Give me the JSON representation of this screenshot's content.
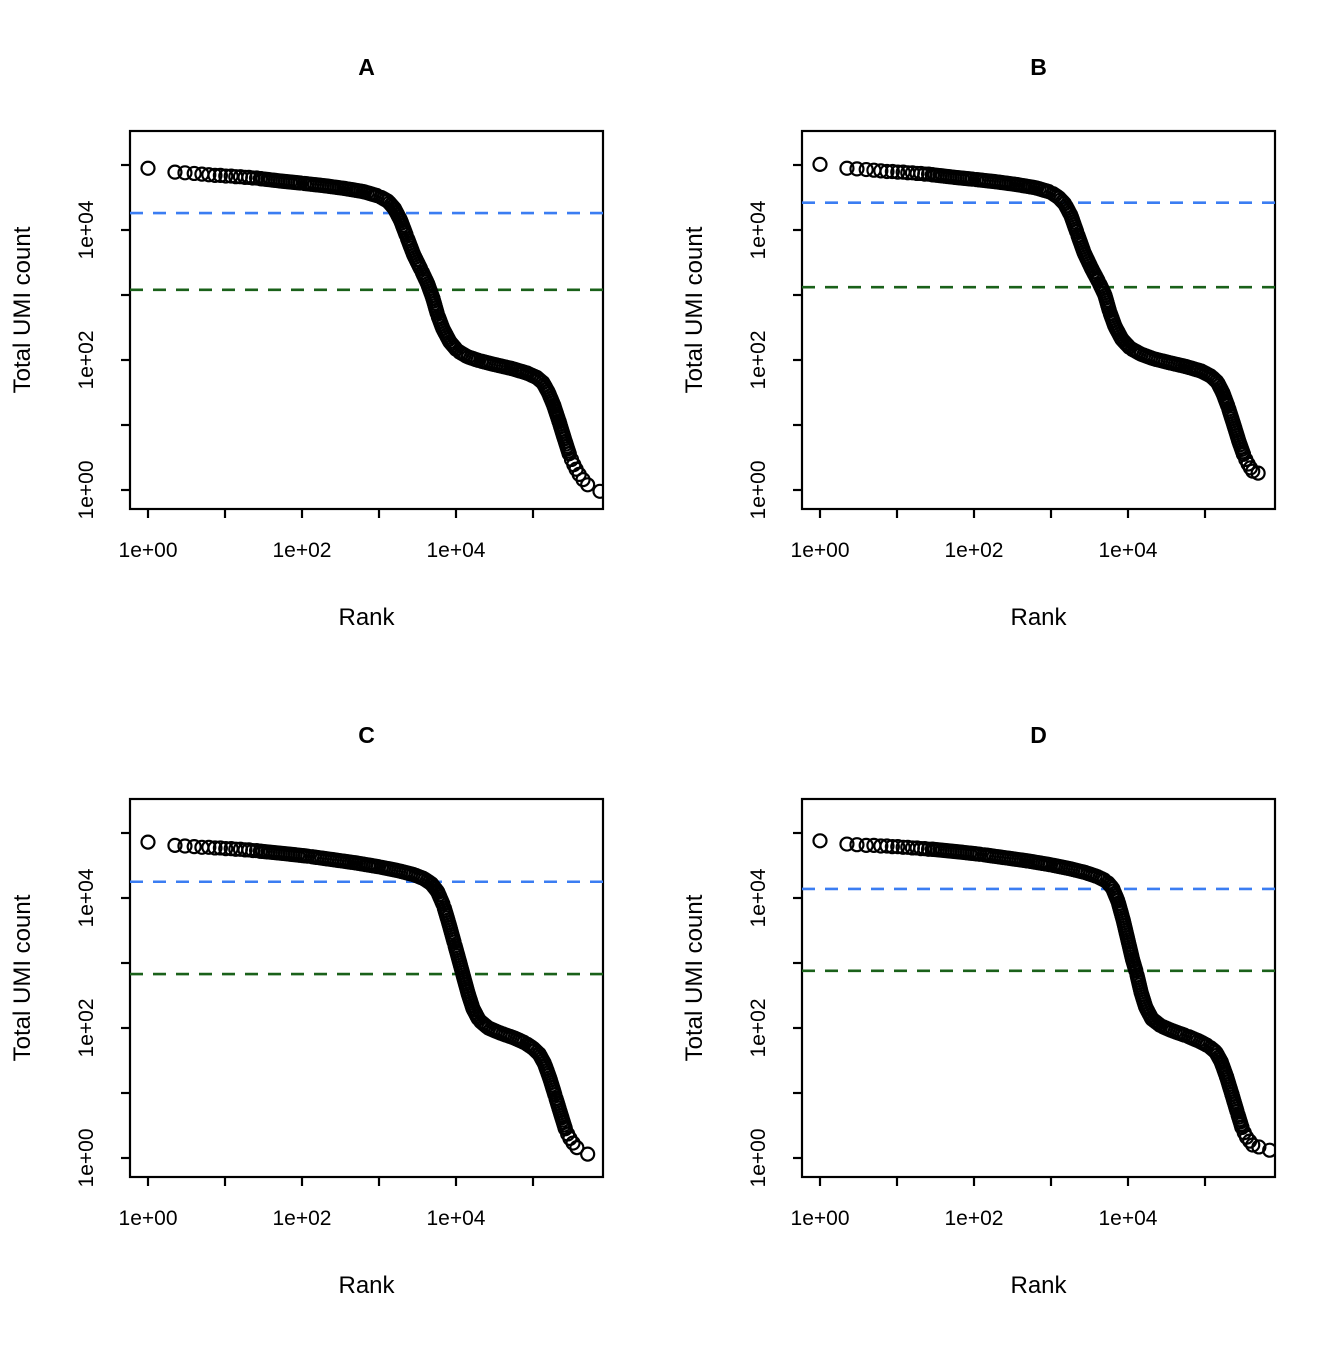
{
  "figure": {
    "description": "Four barcode-rank (knee) plots of droplet scRNA-seq data, panels A-D, log-log axes, with dashed knee and inflection threshold lines",
    "background": "#ffffff",
    "colors": {
      "point_stroke": "#000000",
      "knee_line": "#3b7df2",
      "inflection_line": "#1a611a",
      "axis": "#000000",
      "text": "#000000"
    }
  },
  "chart_data": [
    {
      "panel": "A",
      "type": "scatter",
      "title": "A",
      "xlabel": "Rank",
      "ylabel": "Total UMI count",
      "xscale": "log10",
      "yscale": "log10",
      "grid": false,
      "legend": "none",
      "x_ticks_log10": [
        0,
        1,
        2,
        3,
        4,
        5
      ],
      "x_tick_labels": [
        "1e+00",
        "",
        "1e+02",
        "",
        "1e+04",
        ""
      ],
      "y_ticks_log10": [
        0,
        1,
        2,
        3,
        4,
        5
      ],
      "y_tick_labels": [
        "1e+00",
        "",
        "1e+02",
        "",
        "1e+04",
        ""
      ],
      "xlim_log10": [
        -0.23,
        5.91
      ],
      "ylim_log10": [
        -0.29,
        5.52
      ],
      "knee_log10": 4.26,
      "knee_value_approx": 18000,
      "inflection_log10": 3.08,
      "inflection_value_approx": 1200,
      "lead": [
        [
          0,
          4.95
        ],
        [
          0.35,
          4.89
        ],
        [
          0.48,
          4.88
        ],
        [
          0.6,
          4.87
        ],
        [
          0.7,
          4.86
        ],
        [
          0.79,
          4.85
        ],
        [
          0.87,
          4.84
        ],
        [
          0.94,
          4.84
        ],
        [
          1.01,
          4.83
        ],
        [
          1.08,
          4.83
        ],
        [
          1.14,
          4.82
        ],
        [
          1.2,
          4.82
        ],
        [
          1.26,
          4.81
        ],
        [
          1.31,
          4.81
        ],
        [
          1.36,
          4.8
        ],
        [
          1.41,
          4.8
        ],
        [
          1.46,
          4.79
        ]
      ],
      "band": [
        [
          1.46,
          4.79
        ],
        [
          1.75,
          4.75
        ],
        [
          2.0,
          4.72
        ],
        [
          2.3,
          4.68
        ],
        [
          2.55,
          4.64
        ],
        [
          2.8,
          4.59
        ],
        [
          3.0,
          4.52
        ],
        [
          3.12,
          4.44
        ],
        [
          3.2,
          4.33
        ],
        [
          3.28,
          4.15
        ],
        [
          3.36,
          3.9
        ],
        [
          3.45,
          3.62
        ],
        [
          3.55,
          3.38
        ],
        [
          3.63,
          3.18
        ],
        [
          3.7,
          2.95
        ],
        [
          3.76,
          2.7
        ],
        [
          3.83,
          2.48
        ],
        [
          3.92,
          2.28
        ],
        [
          4.02,
          2.14
        ],
        [
          4.15,
          2.05
        ],
        [
          4.3,
          1.99
        ],
        [
          4.5,
          1.93
        ],
        [
          4.72,
          1.87
        ],
        [
          4.92,
          1.8
        ],
        [
          5.05,
          1.73
        ],
        [
          5.13,
          1.65
        ],
        [
          5.2,
          1.5
        ],
        [
          5.27,
          1.3
        ],
        [
          5.34,
          1.05
        ],
        [
          5.41,
          0.78
        ],
        [
          5.47,
          0.56
        ]
      ],
      "tail": [
        [
          5.5,
          0.47
        ],
        [
          5.53,
          0.39
        ],
        [
          5.56,
          0.32
        ],
        [
          5.6,
          0.24
        ],
        [
          5.65,
          0.16
        ],
        [
          5.71,
          0.08
        ],
        [
          5.87,
          -0.02
        ]
      ]
    },
    {
      "panel": "B",
      "type": "scatter",
      "title": "B",
      "xlabel": "Rank",
      "ylabel": "Total UMI count",
      "xscale": "log10",
      "yscale": "log10",
      "grid": false,
      "legend": "none",
      "x_ticks_log10": [
        0,
        1,
        2,
        3,
        4,
        5
      ],
      "x_tick_labels": [
        "1e+00",
        "",
        "1e+02",
        "",
        "1e+04",
        ""
      ],
      "y_ticks_log10": [
        0,
        1,
        2,
        3,
        4,
        5
      ],
      "y_tick_labels": [
        "1e+00",
        "",
        "1e+02",
        "",
        "1e+04",
        ""
      ],
      "xlim_log10": [
        -0.23,
        5.91
      ],
      "ylim_log10": [
        -0.29,
        5.52
      ],
      "knee_log10": 4.42,
      "knee_value_approx": 26000,
      "inflection_log10": 3.12,
      "inflection_value_approx": 1300,
      "lead": [
        [
          0,
          5.01
        ],
        [
          0.35,
          4.95
        ],
        [
          0.48,
          4.94
        ],
        [
          0.6,
          4.93
        ],
        [
          0.7,
          4.92
        ],
        [
          0.79,
          4.91
        ],
        [
          0.87,
          4.9
        ],
        [
          0.94,
          4.9
        ],
        [
          1.01,
          4.89
        ],
        [
          1.08,
          4.89
        ],
        [
          1.14,
          4.88
        ],
        [
          1.2,
          4.88
        ],
        [
          1.26,
          4.87
        ],
        [
          1.31,
          4.87
        ],
        [
          1.36,
          4.86
        ],
        [
          1.41,
          4.86
        ],
        [
          1.46,
          4.85
        ]
      ],
      "band": [
        [
          1.46,
          4.85
        ],
        [
          1.75,
          4.81
        ],
        [
          2.0,
          4.78
        ],
        [
          2.3,
          4.74
        ],
        [
          2.55,
          4.7
        ],
        [
          2.8,
          4.65
        ],
        [
          3.0,
          4.58
        ],
        [
          3.1,
          4.5
        ],
        [
          3.18,
          4.4
        ],
        [
          3.26,
          4.22
        ],
        [
          3.34,
          3.95
        ],
        [
          3.43,
          3.65
        ],
        [
          3.53,
          3.4
        ],
        [
          3.62,
          3.2
        ],
        [
          3.7,
          3.0
        ],
        [
          3.76,
          2.75
        ],
        [
          3.83,
          2.52
        ],
        [
          3.92,
          2.32
        ],
        [
          4.03,
          2.18
        ],
        [
          4.17,
          2.09
        ],
        [
          4.33,
          2.02
        ],
        [
          4.53,
          1.96
        ],
        [
          4.75,
          1.9
        ],
        [
          4.95,
          1.83
        ],
        [
          5.08,
          1.75
        ],
        [
          5.16,
          1.66
        ],
        [
          5.23,
          1.5
        ],
        [
          5.3,
          1.28
        ],
        [
          5.37,
          1.02
        ],
        [
          5.44,
          0.75
        ],
        [
          5.5,
          0.55
        ]
      ],
      "tail": [
        [
          5.53,
          0.47
        ],
        [
          5.56,
          0.4
        ],
        [
          5.59,
          0.34
        ],
        [
          5.62,
          0.29
        ],
        [
          5.69,
          0.26
        ]
      ]
    },
    {
      "panel": "C",
      "type": "scatter",
      "title": "C",
      "xlabel": "Rank",
      "ylabel": "Total UMI count",
      "xscale": "log10",
      "yscale": "log10",
      "grid": false,
      "legend": "none",
      "x_ticks_log10": [
        0,
        1,
        2,
        3,
        4,
        5
      ],
      "x_tick_labels": [
        "1e+00",
        "",
        "1e+02",
        "",
        "1e+04",
        ""
      ],
      "y_ticks_log10": [
        0,
        1,
        2,
        3,
        4,
        5
      ],
      "y_tick_labels": [
        "1e+00",
        "",
        "1e+02",
        "",
        "1e+04",
        ""
      ],
      "xlim_log10": [
        -0.23,
        5.91
      ],
      "ylim_log10": [
        -0.29,
        5.52
      ],
      "knee_log10": 4.25,
      "knee_value_approx": 18000,
      "inflection_log10": 2.83,
      "inflection_value_approx": 680,
      "lead": [
        [
          0,
          4.86
        ],
        [
          0.35,
          4.81
        ],
        [
          0.48,
          4.8
        ],
        [
          0.6,
          4.79
        ],
        [
          0.7,
          4.78
        ],
        [
          0.79,
          4.78
        ],
        [
          0.87,
          4.77
        ],
        [
          0.94,
          4.77
        ],
        [
          1.01,
          4.76
        ],
        [
          1.08,
          4.76
        ],
        [
          1.14,
          4.75
        ],
        [
          1.2,
          4.75
        ],
        [
          1.26,
          4.74
        ],
        [
          1.31,
          4.74
        ],
        [
          1.36,
          4.73
        ],
        [
          1.41,
          4.73
        ],
        [
          1.46,
          4.72
        ]
      ],
      "band": [
        [
          1.46,
          4.72
        ],
        [
          1.8,
          4.68
        ],
        [
          2.1,
          4.64
        ],
        [
          2.4,
          4.59
        ],
        [
          2.7,
          4.54
        ],
        [
          3.0,
          4.48
        ],
        [
          3.25,
          4.42
        ],
        [
          3.45,
          4.36
        ],
        [
          3.58,
          4.3
        ],
        [
          3.68,
          4.22
        ],
        [
          3.76,
          4.1
        ],
        [
          3.84,
          3.88
        ],
        [
          3.91,
          3.6
        ],
        [
          3.98,
          3.3
        ],
        [
          4.05,
          3.0
        ],
        [
          4.1,
          2.78
        ],
        [
          4.16,
          2.52
        ],
        [
          4.22,
          2.3
        ],
        [
          4.3,
          2.12
        ],
        [
          4.42,
          2.0
        ],
        [
          4.58,
          1.92
        ],
        [
          4.75,
          1.85
        ],
        [
          4.9,
          1.77
        ],
        [
          5.0,
          1.69
        ],
        [
          5.08,
          1.6
        ],
        [
          5.15,
          1.45
        ],
        [
          5.22,
          1.22
        ],
        [
          5.29,
          0.95
        ],
        [
          5.36,
          0.68
        ],
        [
          5.42,
          0.45
        ]
      ],
      "tail": [
        [
          5.45,
          0.37
        ],
        [
          5.48,
          0.3
        ],
        [
          5.52,
          0.23
        ],
        [
          5.57,
          0.16
        ],
        [
          5.71,
          0.06
        ]
      ]
    },
    {
      "panel": "D",
      "type": "scatter",
      "title": "D",
      "xlabel": "Rank",
      "ylabel": "Total UMI count",
      "xscale": "log10",
      "yscale": "log10",
      "grid": false,
      "legend": "none",
      "x_ticks_log10": [
        0,
        1,
        2,
        3,
        4,
        5
      ],
      "x_tick_labels": [
        "1e+00",
        "",
        "1e+02",
        "",
        "1e+04",
        ""
      ],
      "y_ticks_log10": [
        0,
        1,
        2,
        3,
        4,
        5
      ],
      "y_tick_labels": [
        "1e+00",
        "",
        "1e+02",
        "",
        "1e+04",
        ""
      ],
      "xlim_log10": [
        -0.23,
        5.91
      ],
      "ylim_log10": [
        -0.29,
        5.52
      ],
      "knee_log10": 4.14,
      "knee_value_approx": 14000,
      "inflection_log10": 2.88,
      "inflection_value_approx": 760,
      "lead": [
        [
          0,
          4.88
        ],
        [
          0.35,
          4.83
        ],
        [
          0.48,
          4.82
        ],
        [
          0.6,
          4.81
        ],
        [
          0.7,
          4.81
        ],
        [
          0.79,
          4.8
        ],
        [
          0.87,
          4.8
        ],
        [
          0.94,
          4.79
        ],
        [
          1.01,
          4.79
        ],
        [
          1.08,
          4.78
        ],
        [
          1.14,
          4.78
        ],
        [
          1.2,
          4.77
        ],
        [
          1.26,
          4.77
        ],
        [
          1.31,
          4.76
        ],
        [
          1.36,
          4.76
        ],
        [
          1.41,
          4.75
        ],
        [
          1.46,
          4.75
        ]
      ],
      "band": [
        [
          1.46,
          4.75
        ],
        [
          1.8,
          4.71
        ],
        [
          2.1,
          4.67
        ],
        [
          2.4,
          4.62
        ],
        [
          2.7,
          4.57
        ],
        [
          3.0,
          4.51
        ],
        [
          3.25,
          4.45
        ],
        [
          3.45,
          4.39
        ],
        [
          3.6,
          4.33
        ],
        [
          3.72,
          4.26
        ],
        [
          3.8,
          4.15
        ],
        [
          3.87,
          3.95
        ],
        [
          3.94,
          3.65
        ],
        [
          4.0,
          3.35
        ],
        [
          4.06,
          3.05
        ],
        [
          4.11,
          2.85
        ],
        [
          4.17,
          2.55
        ],
        [
          4.23,
          2.32
        ],
        [
          4.31,
          2.14
        ],
        [
          4.43,
          2.03
        ],
        [
          4.59,
          1.95
        ],
        [
          4.76,
          1.88
        ],
        [
          4.92,
          1.8
        ],
        [
          5.05,
          1.72
        ],
        [
          5.14,
          1.63
        ],
        [
          5.21,
          1.48
        ],
        [
          5.28,
          1.25
        ],
        [
          5.35,
          0.98
        ],
        [
          5.42,
          0.7
        ],
        [
          5.48,
          0.47
        ]
      ],
      "tail": [
        [
          5.51,
          0.39
        ],
        [
          5.54,
          0.32
        ],
        [
          5.58,
          0.26
        ],
        [
          5.62,
          0.2
        ],
        [
          5.7,
          0.17
        ],
        [
          5.84,
          0.12
        ]
      ]
    }
  ]
}
